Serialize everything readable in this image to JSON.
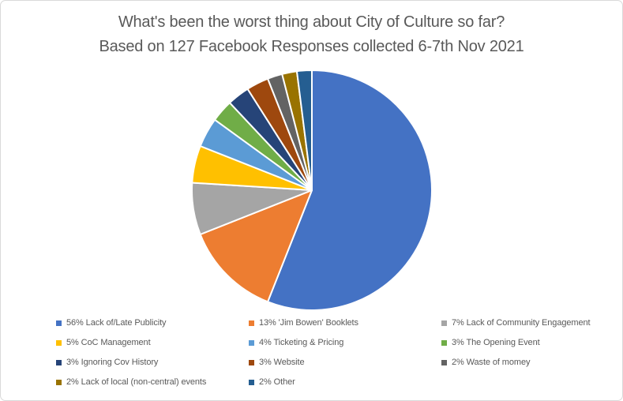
{
  "frame": {
    "background": "#FFFFFF",
    "border_color": "#D9D9D9"
  },
  "title": {
    "line1": "What's been the worst thing about City of Culture so far?",
    "line2": "Based on 127 Facebook Responses collected 6-7th Nov 2021",
    "color": "#595959"
  },
  "chart_data": {
    "type": "pie",
    "title": "What's been the worst thing about City of Culture so far? Based on 127 Facebook Responses collected 6-7th Nov 2021",
    "total_responses": 127,
    "start_angle_deg": 0,
    "direction": "clockwise",
    "legend_position": "bottom",
    "slice_border_color": "#FFFFFF",
    "slices": [
      {
        "label": "Lack of/Late Publicity",
        "value": 56,
        "legend_label": "56% Lack of/Late Publicity",
        "color": "#4472C4"
      },
      {
        "label": "'Jim Bowen' Booklets",
        "value": 13,
        "legend_label": "13% 'Jim Bowen' Booklets",
        "color": "#ED7D31"
      },
      {
        "label": "Lack of Community Engagement",
        "value": 7,
        "legend_label": "7% Lack of Community Engagement",
        "color": "#A5A5A5"
      },
      {
        "label": "CoC Management",
        "value": 5,
        "legend_label": "5% CoC Management",
        "color": "#FFC000"
      },
      {
        "label": "Ticketing & Pricing",
        "value": 4,
        "legend_label": "4% Ticketing & Pricing",
        "color": "#5B9BD5"
      },
      {
        "label": "The Opening Event",
        "value": 3,
        "legend_label": "3% The Opening Event",
        "color": "#70AD47"
      },
      {
        "label": "Ignoring Cov History",
        "value": 3,
        "legend_label": "3% Ignoring Cov History",
        "color": "#264478"
      },
      {
        "label": "Website",
        "value": 3,
        "legend_label": "3% Website",
        "color": "#9E480E"
      },
      {
        "label": "Waste of momey",
        "value": 2,
        "legend_label": "2% Waste of momey",
        "color": "#636363"
      },
      {
        "label": "Lack of local (non-central) events",
        "value": 2,
        "legend_label": "2% Lack of local (non-central) events",
        "color": "#997300"
      },
      {
        "label": "Other",
        "value": 2,
        "legend_label": "2% Other",
        "color": "#255E91"
      }
    ]
  },
  "legend": {
    "text_color": "#595959"
  }
}
